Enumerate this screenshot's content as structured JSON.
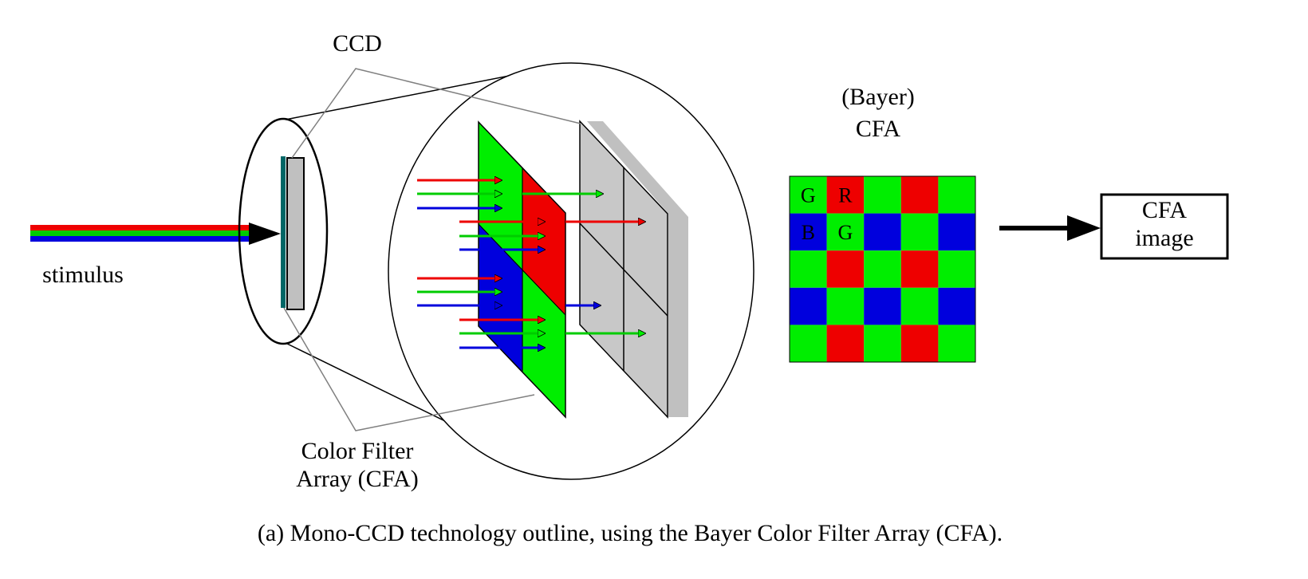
{
  "labels": {
    "ccd": "CCD",
    "bayer_line1": "(Bayer)",
    "bayer_line2": "CFA",
    "stimulus": "stimulus",
    "cfa_filter_line1": "Color Filter",
    "cfa_filter_line2": "Array (CFA)",
    "cfa_image_line1": "CFA",
    "cfa_image_line2": "image",
    "caption": "(a) Mono-CCD technology outline, using the Bayer Color Filter Array (CFA)."
  },
  "colors": {
    "red": "#ee0000",
    "green": "#00ee00",
    "blue": "#0000dd",
    "sensor_gray": "#c0c0c0",
    "shadow_gray": "#c0c0c0",
    "teal": "#006666",
    "leader_gray": "#808080"
  },
  "bayer": {
    "rows": 5,
    "cols": 5,
    "pattern": [
      [
        "G",
        "R",
        "G",
        "R",
        "G"
      ],
      [
        "B",
        "G",
        "B",
        "G",
        "B"
      ],
      [
        "G",
        "R",
        "G",
        "R",
        "G"
      ],
      [
        "B",
        "G",
        "B",
        "G",
        "B"
      ],
      [
        "G",
        "R",
        "G",
        "R",
        "G"
      ]
    ],
    "cell_labels": [
      [
        "G",
        "R",
        "",
        "",
        ""
      ],
      [
        "B",
        "G",
        "",
        "",
        ""
      ],
      [
        "",
        "",
        "",
        "",
        ""
      ],
      [
        "",
        "",
        "",
        "",
        ""
      ],
      [
        "",
        "",
        "",
        "",
        ""
      ]
    ]
  }
}
